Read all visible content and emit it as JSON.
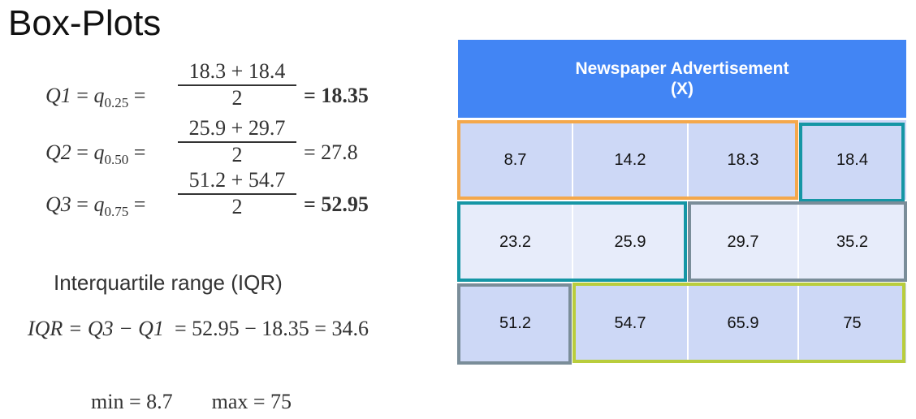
{
  "title": "Box-Plots",
  "quartiles": [
    {
      "name": "Q1",
      "q": "q",
      "sub": "0.25",
      "numerator": "18.3 + 18.4",
      "denominator": "2",
      "result": "= 18.35",
      "bold": true
    },
    {
      "name": "Q2",
      "q": "q",
      "sub": "0.50",
      "numerator": "25.9 + 29.7",
      "denominator": "2",
      "result": "= 27.8",
      "bold": false
    },
    {
      "name": "Q3",
      "q": "q",
      "sub": "0.75",
      "numerator": "51.2 + 54.7",
      "denominator": "2",
      "result": "= 52.95",
      "bold": true
    }
  ],
  "iqr": {
    "label": "Interquartile range (IQR)",
    "lhs": "IQR = Q3 − Q1",
    "rhs": "= 52.95 − 18.35 = 34.6"
  },
  "min": "min = 8.7",
  "max": "max = 75",
  "table": {
    "header_line1": "Newspaper Advertisement",
    "header_line2": "(X)",
    "rows": [
      [
        "8.7",
        "14.2",
        "18.3",
        "18.4"
      ],
      [
        "23.2",
        "25.9",
        "29.7",
        "35.2"
      ],
      [
        "51.2",
        "54.7",
        "65.9",
        "75"
      ]
    ]
  },
  "colors": {
    "header_bg": "#4285f4",
    "cell_dark": "#cdd8f6",
    "cell_light": "#e7ecfa",
    "group_orange": "#f4a84b",
    "group_teal": "#1596a5",
    "group_slate": "#7a8d99",
    "group_lime": "#b9cd3c"
  }
}
